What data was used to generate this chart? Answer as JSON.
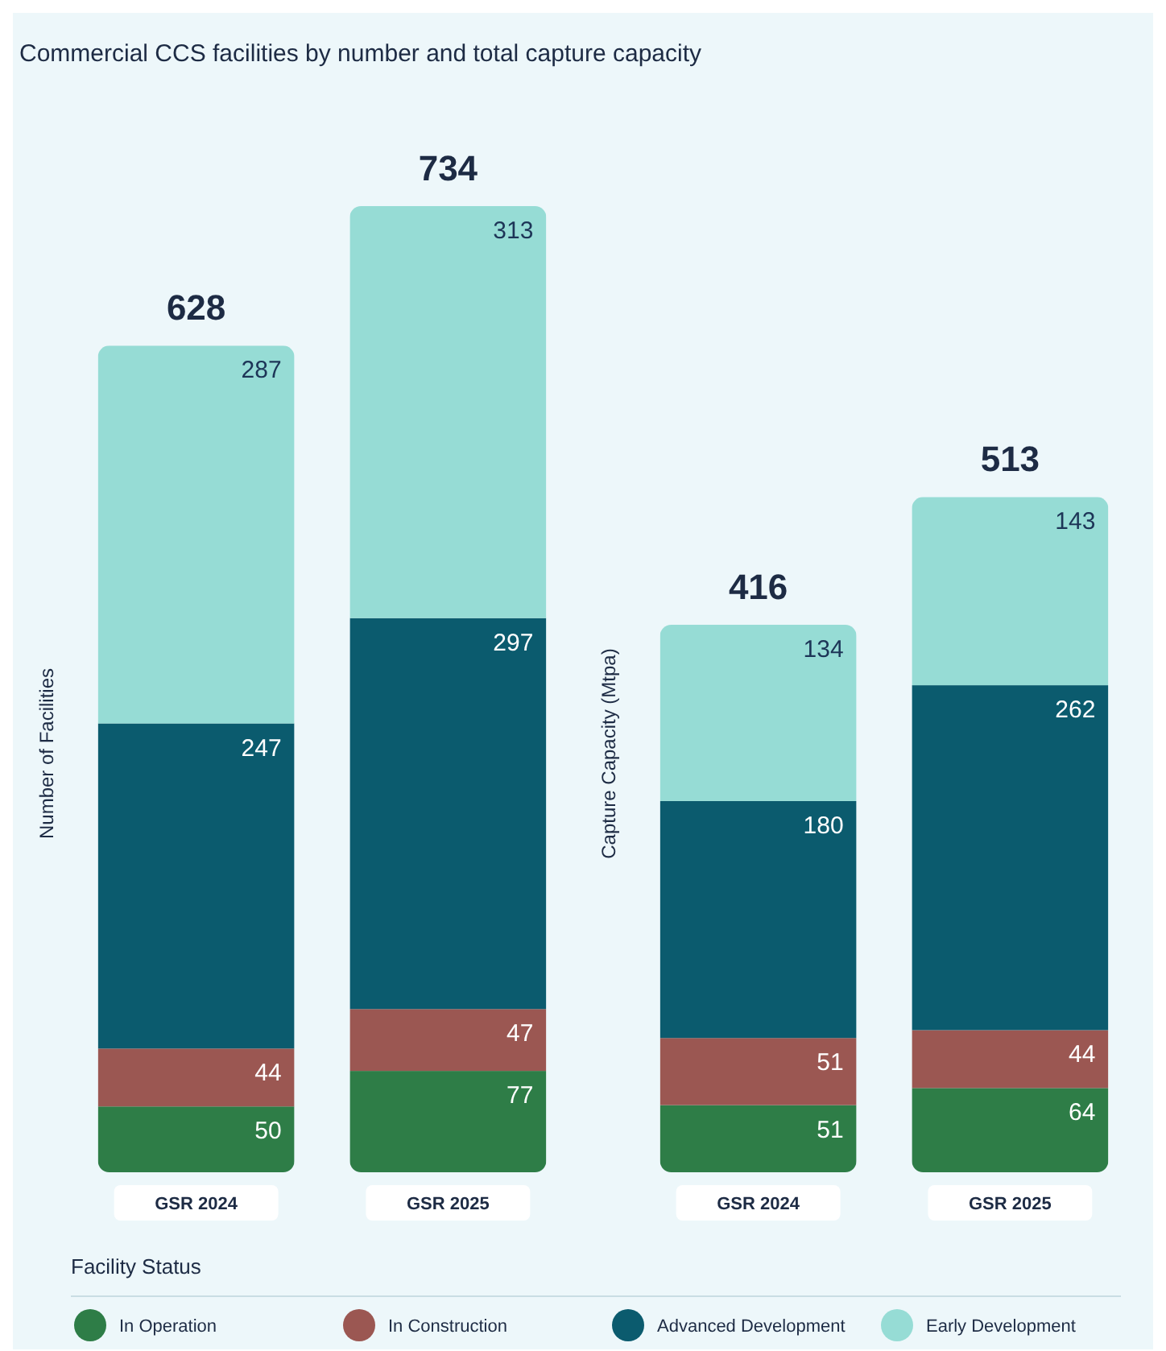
{
  "chart_data": [
    {
      "type": "bar",
      "title": "Commercial CCS facilities by number and total capture capacity",
      "ylabel": "Number of Facilities",
      "categories": [
        "GSR 2024",
        "GSR 2025"
      ],
      "stacked": true,
      "data_labels": true,
      "totals": [
        "628",
        "734"
      ],
      "legend": "bottom",
      "legend_title": "Facility Status",
      "series": [
        {
          "name": "In Operation",
          "color": "#2e7d47",
          "values": [
            50,
            77
          ]
        },
        {
          "name": "In Construction",
          "color": "#9b5752",
          "values": [
            44,
            47
          ]
        },
        {
          "name": "Advanced Development",
          "color": "#0b5b6e",
          "values": [
            247,
            297
          ]
        },
        {
          "name": "Early Development",
          "color": "#96dcd5",
          "values": [
            287,
            313
          ]
        }
      ]
    },
    {
      "type": "bar",
      "ylabel": "Capture Capacity (Mtpa)",
      "categories": [
        "GSR 2024",
        "GSR 2025"
      ],
      "stacked": true,
      "data_labels": true,
      "totals": [
        "416",
        "513"
      ],
      "series": [
        {
          "color": "#2e7d47",
          "values": [
            51,
            64
          ]
        },
        {
          "color": "#9b5752",
          "values": [
            51,
            44
          ]
        },
        {
          "color": "#0b5b6e",
          "values": [
            180,
            262
          ]
        },
        {
          "color": "#96dcd5",
          "values": [
            134,
            143
          ]
        }
      ]
    }
  ]
}
